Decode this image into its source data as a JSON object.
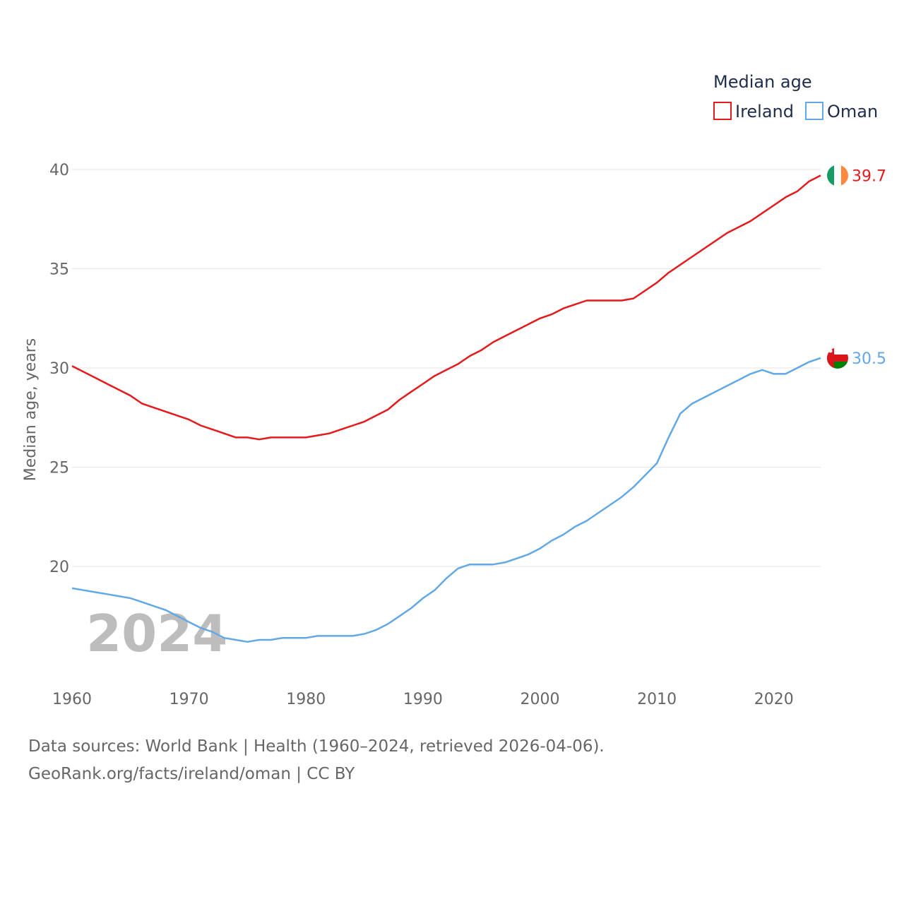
{
  "chart_data": {
    "type": "line",
    "title": "",
    "ylabel": "Median age, years",
    "xlabel": "",
    "xlim": [
      1960,
      2024
    ],
    "ylim": [
      15,
      40.5
    ],
    "y_ticks": [
      20,
      25,
      30,
      35,
      40
    ],
    "x_ticks": [
      1960,
      1970,
      1980,
      1990,
      2000,
      2010,
      2020
    ],
    "grid": true,
    "legend": {
      "title": "Median age",
      "position": "top-right"
    },
    "year_label": "2024",
    "x": [
      1960,
      1961,
      1962,
      1963,
      1964,
      1965,
      1966,
      1967,
      1968,
      1969,
      1970,
      1971,
      1972,
      1973,
      1974,
      1975,
      1976,
      1977,
      1978,
      1979,
      1980,
      1981,
      1982,
      1983,
      1984,
      1985,
      1986,
      1987,
      1988,
      1989,
      1990,
      1991,
      1992,
      1993,
      1994,
      1995,
      1996,
      1997,
      1998,
      1999,
      2000,
      2001,
      2002,
      2003,
      2004,
      2005,
      2006,
      2007,
      2008,
      2009,
      2010,
      2011,
      2012,
      2013,
      2014,
      2015,
      2016,
      2017,
      2018,
      2019,
      2020,
      2021,
      2022,
      2023,
      2024
    ],
    "series": [
      {
        "name": "Ireland",
        "color": "#e41a1c",
        "end_label": "39.7",
        "flag": "ireland-flag",
        "values": [
          30.1,
          29.8,
          29.5,
          29.2,
          28.9,
          28.6,
          28.2,
          28.0,
          27.8,
          27.6,
          27.4,
          27.1,
          26.9,
          26.7,
          26.5,
          26.5,
          26.4,
          26.5,
          26.5,
          26.5,
          26.5,
          26.6,
          26.7,
          26.9,
          27.1,
          27.3,
          27.6,
          27.9,
          28.4,
          28.8,
          29.2,
          29.6,
          29.9,
          30.2,
          30.6,
          30.9,
          31.3,
          31.6,
          31.9,
          32.2,
          32.5,
          32.7,
          33.0,
          33.2,
          33.4,
          33.4,
          33.4,
          33.4,
          33.5,
          33.9,
          34.3,
          34.8,
          35.2,
          35.6,
          36.0,
          36.4,
          36.8,
          37.1,
          37.4,
          37.8,
          38.2,
          38.6,
          38.9,
          39.4,
          39.7
        ]
      },
      {
        "name": "Oman",
        "color": "#62a8e5",
        "end_label": "30.5",
        "flag": "oman-flag",
        "values": [
          18.9,
          18.8,
          18.7,
          18.6,
          18.5,
          18.4,
          18.2,
          18.0,
          17.8,
          17.5,
          17.2,
          16.9,
          16.7,
          16.4,
          16.3,
          16.2,
          16.3,
          16.3,
          16.4,
          16.4,
          16.4,
          16.5,
          16.5,
          16.5,
          16.5,
          16.6,
          16.8,
          17.1,
          17.5,
          17.9,
          18.4,
          18.8,
          19.4,
          19.9,
          20.1,
          20.1,
          20.1,
          20.2,
          20.4,
          20.6,
          20.9,
          21.3,
          21.6,
          22.0,
          22.3,
          22.7,
          23.1,
          23.5,
          24.0,
          24.6,
          25.2,
          26.5,
          27.7,
          28.2,
          28.5,
          28.8,
          29.1,
          29.4,
          29.7,
          29.9,
          29.7,
          29.7,
          30.0,
          30.3,
          30.5
        ]
      }
    ]
  },
  "footer": {
    "sources": "Data sources: World Bank | Health (1960–2024, retrieved 2026-04-06).",
    "credit": "GeoRank.org/facts/ireland/oman | CC BY"
  }
}
